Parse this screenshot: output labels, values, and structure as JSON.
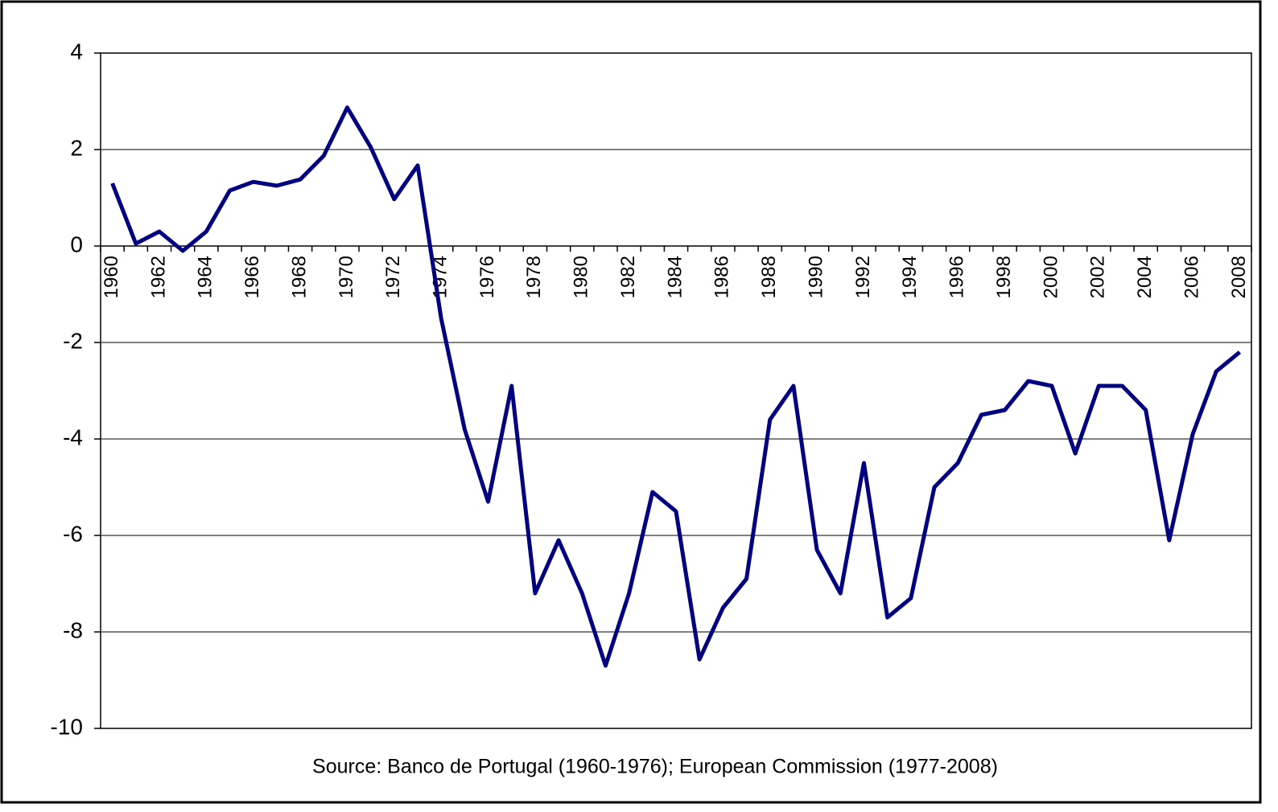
{
  "chart_data": {
    "type": "line",
    "caption": "Source: Banco de Portugal (1960-1976); European Commission (1977-2008)",
    "categories": [
      "1960",
      null,
      "1962",
      null,
      "1964",
      null,
      "1966",
      null,
      "1968",
      null,
      "1970",
      null,
      "1972",
      null,
      "1974",
      null,
      "1976",
      null,
      "1978",
      null,
      "1980",
      null,
      "1982",
      null,
      "1984",
      null,
      "1986",
      null,
      "1988",
      null,
      "1990",
      null,
      "1992",
      null,
      "1994",
      null,
      "1996",
      null,
      "1998",
      null,
      "2000",
      null,
      "2002",
      null,
      "2004",
      null,
      "2006",
      null,
      "2008"
    ],
    "series": [
      {
        "color": "#000080",
        "values": [
          1.3,
          0.05,
          0.3,
          -0.1,
          0.3,
          1.15,
          1.33,
          1.25,
          1.38,
          1.87,
          2.87,
          2.05,
          0.97,
          1.67,
          -1.5,
          -3.8,
          -5.3,
          -2.9,
          -7.2,
          -6.1,
          -7.2,
          -8.7,
          -7.2,
          -5.1,
          -5.5,
          -8.57,
          -7.5,
          -6.9,
          -3.6,
          -2.9,
          -6.3,
          -7.2,
          -4.5,
          -7.7,
          -7.3,
          -5.0,
          -4.5,
          -3.5,
          -3.4,
          -2.8,
          -2.9,
          -4.3,
          -2.9,
          -2.9,
          -3.4,
          -6.1,
          -3.9,
          -2.6,
          -2.2
        ]
      }
    ],
    "ylim": [
      -10,
      4
    ],
    "yticks": [
      -10,
      -8,
      -6,
      -4,
      -2,
      0,
      2,
      4
    ],
    "grid": true
  }
}
